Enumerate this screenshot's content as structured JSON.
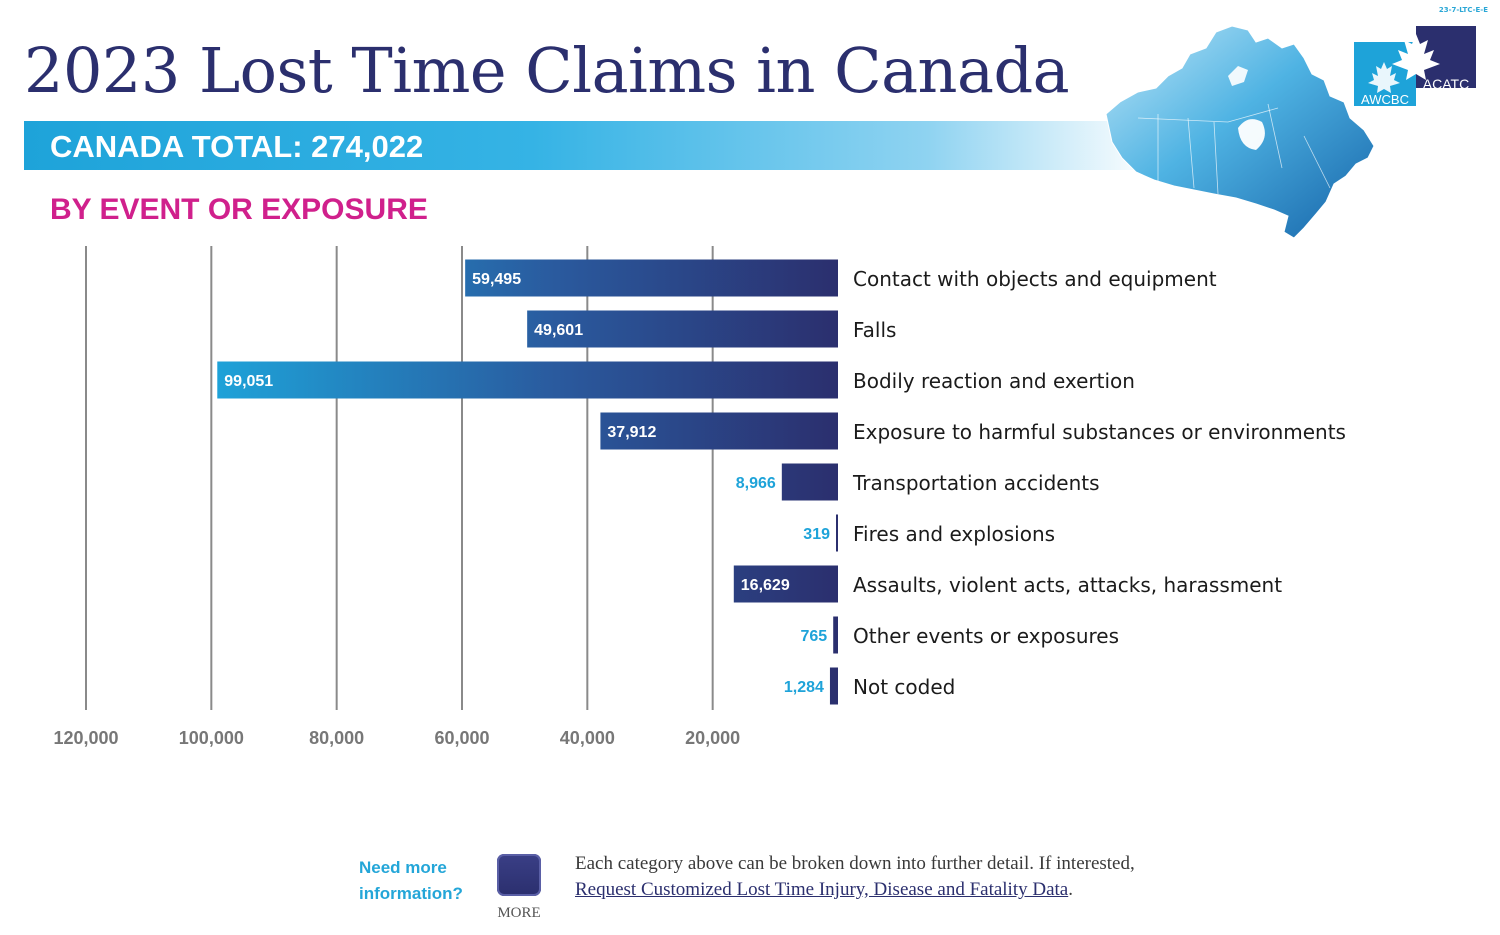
{
  "header": {
    "doc_code": "23-7-LTC-E-E",
    "title": "2023 Lost Time Claims in Canada",
    "total_label": "CANADA TOTAL: 274,022",
    "section_heading": "BY EVENT OR EXPOSURE"
  },
  "logo": {
    "left_text": "AWCBC",
    "right_text": "ACATC"
  },
  "colors": {
    "navy": "#2b2f6e",
    "cyan": "#1ea3d9",
    "magenta": "#d0208c",
    "grid": "#8a8a8a",
    "tick": "#777777"
  },
  "chart_data": {
    "type": "bar",
    "orientation": "horizontal",
    "direction": "right-to-left",
    "title": "BY EVENT OR EXPOSURE",
    "xlabel": "",
    "ylabel": "",
    "xlim": [
      0,
      120000
    ],
    "x_ticks": [
      120000,
      100000,
      80000,
      60000,
      40000,
      20000
    ],
    "x_tick_labels": [
      "120,000",
      "100,000",
      "80,000",
      "60,000",
      "40,000",
      "20,000"
    ],
    "grid": true,
    "categories": [
      "Contact with objects and equipment",
      "Falls",
      "Bodily reaction and exertion",
      "Exposure to harmful substances or environments",
      "Transportation accidents",
      "Fires and explosions",
      "Assaults, violent acts, attacks, harassment",
      "Other events or exposures",
      "Not coded"
    ],
    "values": [
      59495,
      49601,
      99051,
      37912,
      8966,
      319,
      16629,
      765,
      1284
    ],
    "value_labels": [
      "59,495",
      "49,601",
      "99,051",
      "37,912",
      "8,966",
      "319",
      "16,629",
      "765",
      "1,284"
    ]
  },
  "footer": {
    "need_line1": "Need more",
    "need_line2": "information?",
    "more_label": "MORE",
    "note_line1": "Each category above can be broken down into further detail. If interested,",
    "link_text": "Request Customized Lost Time Injury, Disease and Fatality Data",
    "note_suffix": "."
  }
}
